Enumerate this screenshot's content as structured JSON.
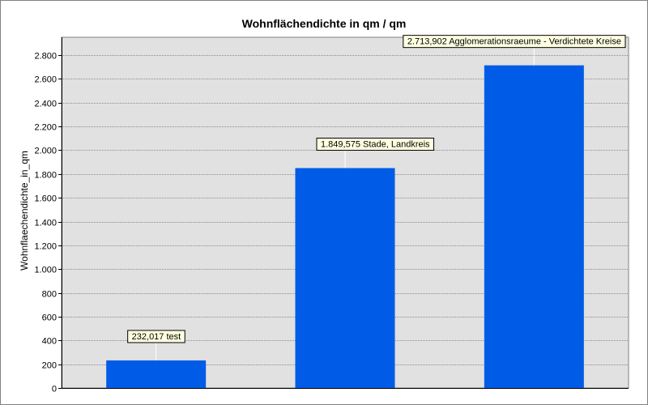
{
  "chart_data": {
    "type": "bar",
    "title": "Wohnflächendichte in qm / qm",
    "xlabel": "",
    "ylabel": "Wohnflaechendichte_in_qm",
    "categories": [
      "test",
      "Stade, Landkreis",
      "Agglomerationsraeume - Verdichtete Kreise"
    ],
    "values": [
      232.017,
      1849.575,
      2713.902
    ],
    "data_labels": [
      "232,017 test",
      "1.849,575 Stade, Landkreis",
      "2.713,902 Agglomerationsraeume - Verdichtete Kreise"
    ],
    "ylim": [
      0,
      2950
    ],
    "yticks": [
      0,
      200,
      400,
      600,
      800,
      1000,
      1200,
      1400,
      1600,
      1800,
      2000,
      2200,
      2400,
      2600,
      2800
    ],
    "ytick_labels": [
      "0",
      "200",
      "400",
      "600",
      "800",
      "1.000",
      "1.200",
      "1.400",
      "1.600",
      "1.800",
      "2.000",
      "2.200",
      "2.400",
      "2.600",
      "2.800"
    ],
    "grid": true,
    "legend": "none",
    "colors": {
      "bar": "#005ce6",
      "plot_background": "#e1e1e1",
      "grid": "#8c8c8c",
      "label_background": "#ffffe1"
    }
  }
}
